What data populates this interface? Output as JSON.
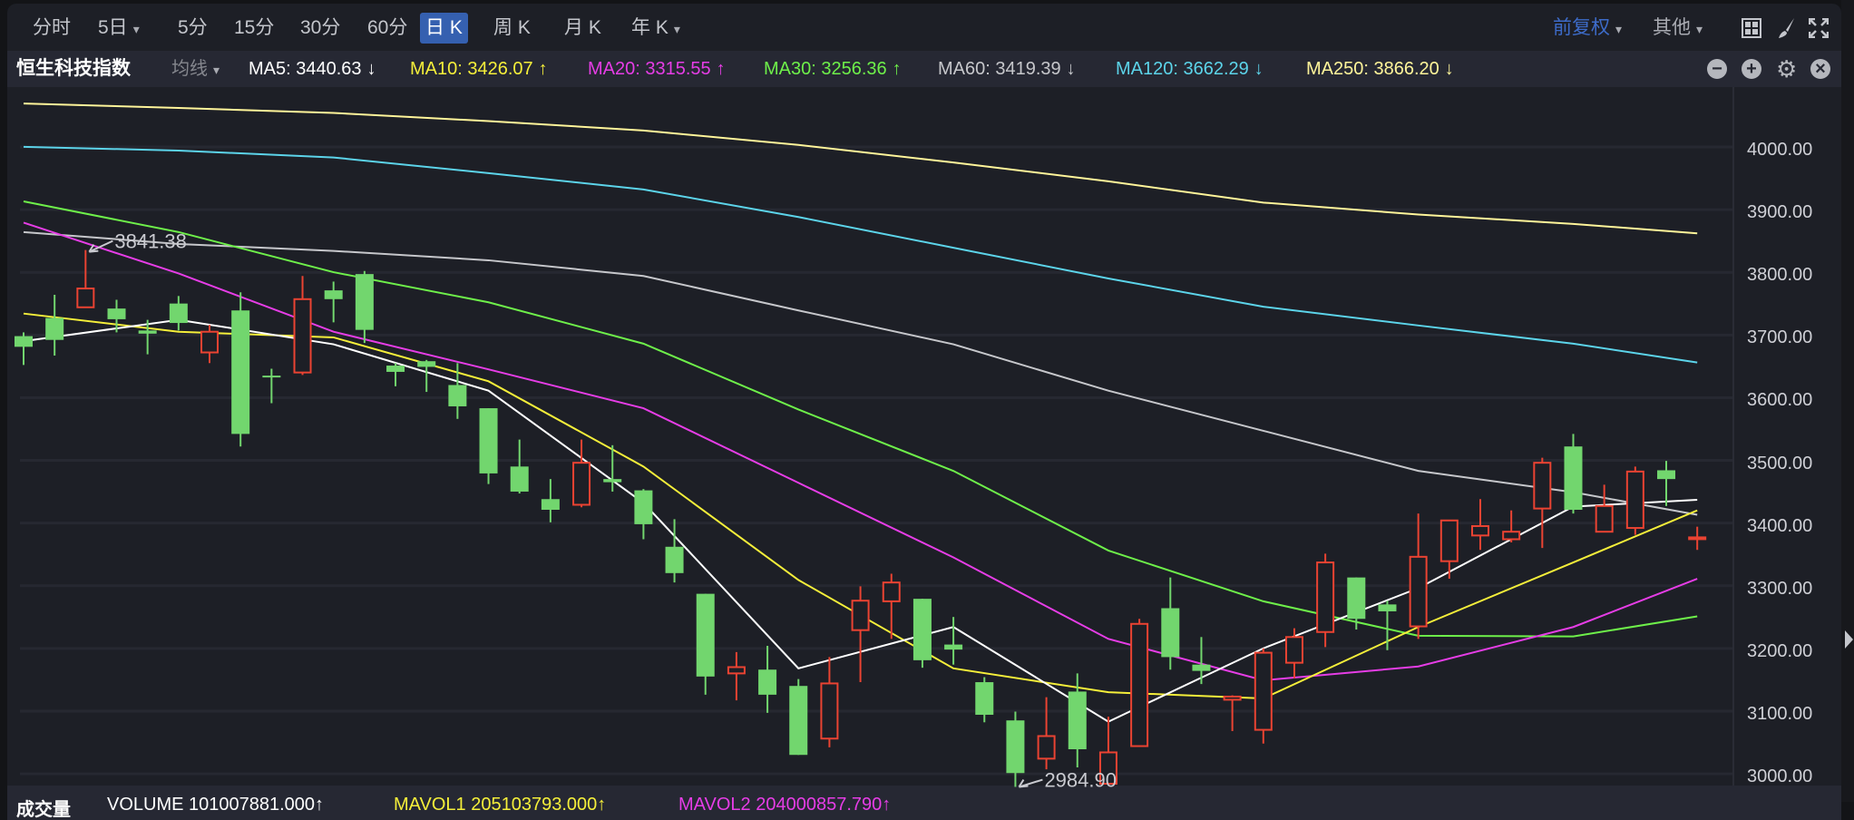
{
  "toolbar": {
    "periods": [
      {
        "label": "分时",
        "caret": false
      },
      {
        "label": "5日",
        "caret": true
      },
      {
        "label": "5分",
        "caret": false
      },
      {
        "label": "15分",
        "caret": false
      },
      {
        "label": "30分",
        "caret": false
      },
      {
        "label": "60分",
        "caret": false
      },
      {
        "label": "日 K",
        "caret": false,
        "active": true
      },
      {
        "label": "周 K",
        "caret": false
      },
      {
        "label": "月 K",
        "caret": false
      },
      {
        "label": "年 K",
        "caret": true
      }
    ],
    "adjust_label": "前复权",
    "other_label": "其他",
    "caret": "▾",
    "icons": [
      "layout-grid-icon",
      "brush-icon",
      "fullscreen-icon"
    ]
  },
  "legend": {
    "title": "恒生科技指数",
    "indicator_label": "均线",
    "caret": "▾",
    "ma": [
      {
        "label": "MA5: 3440.63",
        "arrow": "↓",
        "color": "#ffffff"
      },
      {
        "label": "MA10: 3426.07",
        "arrow": "↑",
        "color": "#f5ef3a"
      },
      {
        "label": "MA20: 3315.55",
        "arrow": "↑",
        "color": "#e63de6"
      },
      {
        "label": "MA30: 3256.36",
        "arrow": "↑",
        "color": "#6ef04a"
      },
      {
        "label": "MA60: 3419.39",
        "arrow": "↓",
        "color": "#c6c7cb"
      },
      {
        "label": "MA120: 3662.29",
        "arrow": "↓",
        "color": "#5cd4ea"
      },
      {
        "label": "MA250: 3866.20",
        "arrow": "↓",
        "color": "#fff59a"
      }
    ],
    "controls": {
      "minus": "−",
      "plus": "+",
      "gear": "⚙",
      "close": "×"
    }
  },
  "volume": {
    "title": "成交量",
    "volume": "VOLUME 101007881.000↑",
    "mavol1": "MAVOL1 205103793.000↑",
    "mavol2": "MAVOL2 204000857.790↑"
  },
  "colors": {
    "up": "#ea4332",
    "down": "#72d66e",
    "grid": "#262831",
    "annotation": "#c9cad0"
  },
  "chart_data": {
    "type": "candlestick",
    "title": "恒生科技指数",
    "ylim": [
      3000,
      4000
    ],
    "y_ticks": [
      "4000.00",
      "3900.00",
      "3800.00",
      "3700.00",
      "3600.00",
      "3500.00",
      "3400.00",
      "3300.00",
      "3200.00",
      "3100.00",
      "3000.00"
    ],
    "y_tick_values": [
      4000,
      3900,
      3800,
      3700,
      3600,
      3500,
      3400,
      3300,
      3200,
      3100,
      3000
    ],
    "candles_ohlc": [
      [
        3704,
        3710,
        3658,
        3687
      ],
      [
        3733,
        3770,
        3673,
        3698
      ],
      [
        3750,
        3841.38,
        3749,
        3780
      ],
      [
        3748,
        3762,
        3710,
        3731
      ],
      [
        3713,
        3730,
        3675,
        3708
      ],
      [
        3756,
        3768,
        3713,
        3725
      ],
      [
        3678,
        3722,
        3661,
        3711
      ],
      [
        3745,
        3774,
        3528,
        3548
      ],
      [
        3641,
        3652,
        3597,
        3640
      ],
      [
        3646,
        3800,
        3642,
        3763
      ],
      [
        3777,
        3791,
        3726,
        3763
      ],
      [
        3803,
        3808,
        3693,
        3714
      ],
      [
        3657,
        3661,
        3624,
        3647
      ],
      [
        3664,
        3666,
        3615,
        3655
      ],
      [
        3626,
        3661,
        3572,
        3592
      ],
      [
        3589,
        3589,
        3468,
        3485
      ],
      [
        3496,
        3539,
        3453,
        3456
      ],
      [
        3444,
        3476,
        3407,
        3427
      ],
      [
        3435,
        3539,
        3431,
        3502
      ],
      [
        3476,
        3530,
        3456,
        3471
      ],
      [
        3458,
        3460,
        3380,
        3404
      ],
      [
        3368,
        3412,
        3311,
        3326
      ],
      [
        3293,
        3293,
        3132,
        3161
      ],
      [
        3166,
        3200,
        3123,
        3176
      ],
      [
        3172,
        3210,
        3103,
        3132
      ],
      [
        3146,
        3157,
        3036,
        3036
      ],
      [
        3062,
        3192,
        3048,
        3150
      ],
      [
        3235,
        3305,
        3152,
        3282
      ],
      [
        3281,
        3325,
        3221,
        3311
      ],
      [
        3285,
        3285,
        3175,
        3187
      ],
      [
        3212,
        3256,
        3180,
        3204
      ],
      [
        3152,
        3160,
        3088,
        3100
      ],
      [
        3091,
        3105,
        2984.9,
        3007
      ],
      [
        3030,
        3128,
        3013,
        3066
      ],
      [
        3137,
        3166,
        3016,
        3045
      ],
      [
        2990,
        3097,
        2990,
        3040
      ],
      [
        3050,
        3253,
        3050,
        3245
      ],
      [
        3270,
        3319,
        3172,
        3192
      ],
      [
        3180,
        3224,
        3149,
        3170
      ],
      [
        3124,
        3131,
        3074,
        3129
      ],
      [
        3076,
        3206,
        3054,
        3199
      ],
      [
        3183,
        3238,
        3158,
        3224
      ],
      [
        3232,
        3357,
        3208,
        3343
      ],
      [
        3319,
        3319,
        3236,
        3253
      ],
      [
        3276,
        3282,
        3203,
        3265
      ],
      [
        3241,
        3421,
        3221,
        3352
      ],
      [
        3345,
        3410,
        3317,
        3410
      ],
      [
        3386,
        3444,
        3363,
        3401
      ],
      [
        3380,
        3426,
        3375,
        3392
      ],
      [
        3429,
        3510,
        3366,
        3502
      ],
      [
        3528,
        3548,
        3421,
        3427
      ],
      [
        3392,
        3467,
        3392,
        3433
      ],
      [
        3398,
        3496,
        3387,
        3488
      ],
      [
        3490,
        3505,
        3433,
        3476
      ],
      [
        3383,
        3400,
        3363,
        3383
      ]
    ],
    "ma_sample_index": [
      0,
      5,
      10,
      15,
      20,
      25,
      30,
      35,
      40,
      45,
      50,
      54
    ],
    "ma_series": [
      {
        "name": "MA5",
        "values": [
          3696,
          3730,
          3691,
          3617,
          3438,
          3174,
          3240,
          3089,
          3206,
          3302,
          3432,
          3443
        ]
      },
      {
        "name": "MA10",
        "values": [
          3740,
          3711,
          3702,
          3632,
          3496,
          3315,
          3174,
          3136,
          3126,
          3240,
          3343,
          3426
        ]
      },
      {
        "name": "MA20",
        "values": [
          3885,
          3804,
          3711,
          3651,
          3589,
          3470,
          3351,
          3221,
          3155,
          3177,
          3240,
          3317
        ]
      },
      {
        "name": "MA30",
        "values": [
          3919,
          3870,
          3806,
          3758,
          3692,
          3587,
          3489,
          3362,
          3281,
          3226,
          3225,
          3257
        ]
      },
      {
        "name": "MA60",
        "values": [
          3870,
          3851,
          3840,
          3825,
          3800,
          3745,
          3691,
          3617,
          3553,
          3489,
          3455,
          3419
        ]
      },
      {
        "name": "MA120",
        "values": [
          4006,
          4000,
          3989,
          3964,
          3938,
          3894,
          3845,
          3796,
          3751,
          3721,
          3692,
          3662
        ]
      },
      {
        "name": "MA250",
        "values": [
          4075,
          4068,
          4060,
          4047,
          4032,
          4009,
          3981,
          3951,
          3917,
          3898,
          3883,
          3868
        ]
      }
    ],
    "annotations": [
      {
        "candle": 2,
        "price": 3841.38,
        "label": "3841.38",
        "type": "high"
      },
      {
        "candle": 32,
        "price": 2984.9,
        "label": "2984.90",
        "type": "low"
      }
    ]
  }
}
